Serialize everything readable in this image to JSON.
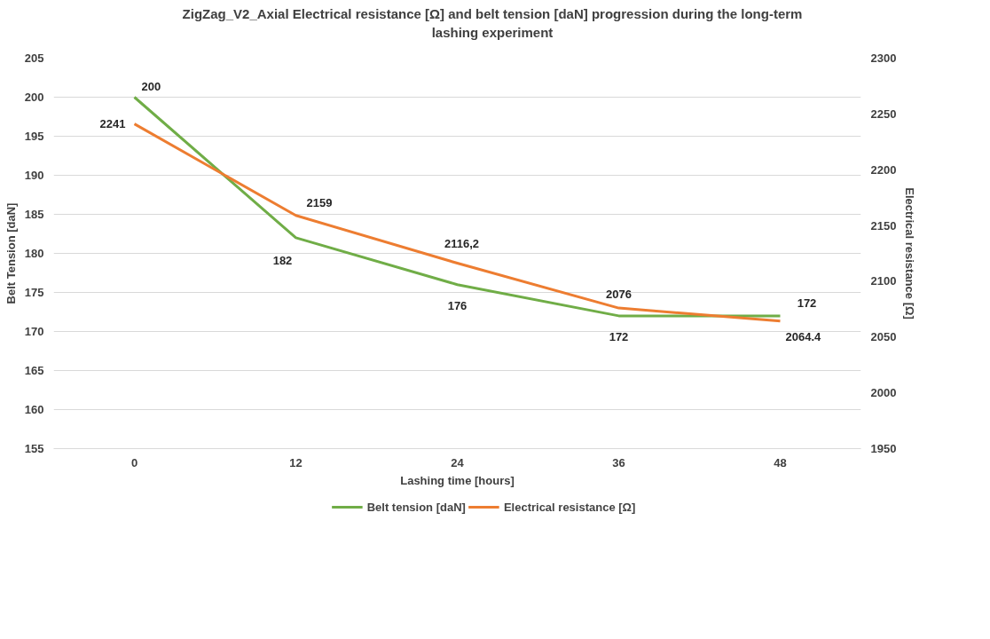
{
  "chart_data": {
    "type": "line",
    "title": "ZigZag_V2_Axial Electrical resistance [Ω] and belt tension [daN] progression during the long-term\nlashing experiment",
    "xlabel": "Lashing time [hours]",
    "ylabel": "Belt Tension [daN]",
    "y2label": "Electrical resistance [Ω]",
    "categories": [
      "0",
      "12",
      "24",
      "36",
      "48"
    ],
    "series": [
      {
        "name": "Belt tension [daN]",
        "color": "#70ad47",
        "values": [
          200,
          182,
          176,
          172,
          172
        ],
        "value_labels": [
          "200",
          "182",
          "176",
          "172",
          "172"
        ]
      },
      {
        "name": "Electrical resistance [Ω]",
        "color": "#ed7d31",
        "axis": "y2",
        "values": [
          2241,
          2159,
          2116.2,
          2076,
          2064.4
        ],
        "value_labels": [
          "2241",
          "2159",
          "2116,2",
          "2076",
          "2064.4"
        ]
      }
    ],
    "ylim": [
      155,
      205
    ],
    "yticks": [
      155,
      160,
      165,
      170,
      175,
      180,
      185,
      190,
      195,
      200,
      205
    ],
    "y2lim": [
      1950,
      2300
    ],
    "y2ticks": [
      1950,
      2000,
      2050,
      2100,
      2150,
      2200,
      2250,
      2300
    ],
    "grid": "y",
    "legend": "bottom",
    "marker": "none",
    "line_style": "solid"
  }
}
